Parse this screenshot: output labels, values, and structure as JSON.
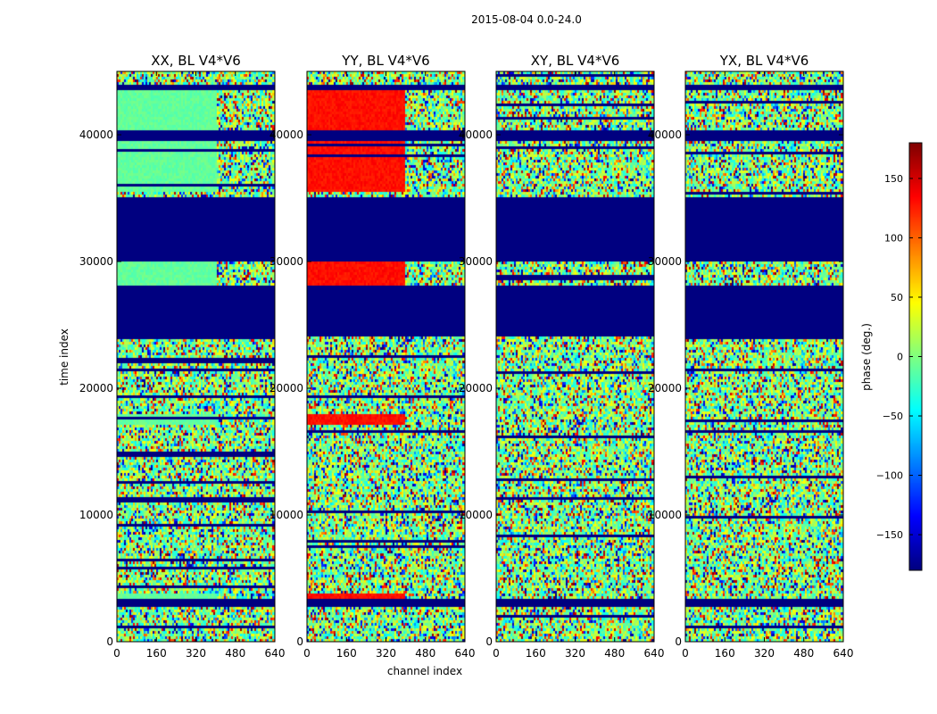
{
  "figure_title": "2015-08-04 0.0-24.0",
  "chart_data": {
    "type": "heatmap",
    "title": "2015-08-04 0.0-24.0",
    "xlabel": "channel index",
    "ylabel": "time index",
    "xlim": [
      0,
      640
    ],
    "ylim": [
      0,
      45000
    ],
    "x_ticks": [
      0,
      160,
      320,
      480,
      640
    ],
    "y_ticks": [
      0,
      10000,
      20000,
      30000,
      40000
    ],
    "panels": [
      {
        "title": "XX, BL V4*V6",
        "polarization": "XX",
        "coherent_phase": -10,
        "coherent_channel_max": 410
      },
      {
        "title": "YY, BL V4*V6",
        "polarization": "YY",
        "coherent_phase": 130,
        "coherent_channel_max": 400
      },
      {
        "title": "XY, BL V4*V6",
        "polarization": "XY"
      },
      {
        "title": "YX, BL V4*V6",
        "polarization": "YX"
      }
    ],
    "masked_time_ranges": [
      [
        24000,
        28000
      ],
      [
        30000,
        35000
      ],
      [
        39600,
        40400
      ],
      [
        2800,
        3300
      ],
      [
        43600,
        44000
      ]
    ],
    "masked_value": -180,
    "colorbar": {
      "label": "phase (deg.)",
      "range": [
        -180,
        180
      ],
      "ticks": [
        -150,
        -100,
        -50,
        0,
        50,
        100,
        150
      ],
      "tick_labels": [
        "−150",
        "−100",
        "−50",
        "0",
        "50",
        "100",
        "150"
      ],
      "colormap": "jet"
    }
  }
}
